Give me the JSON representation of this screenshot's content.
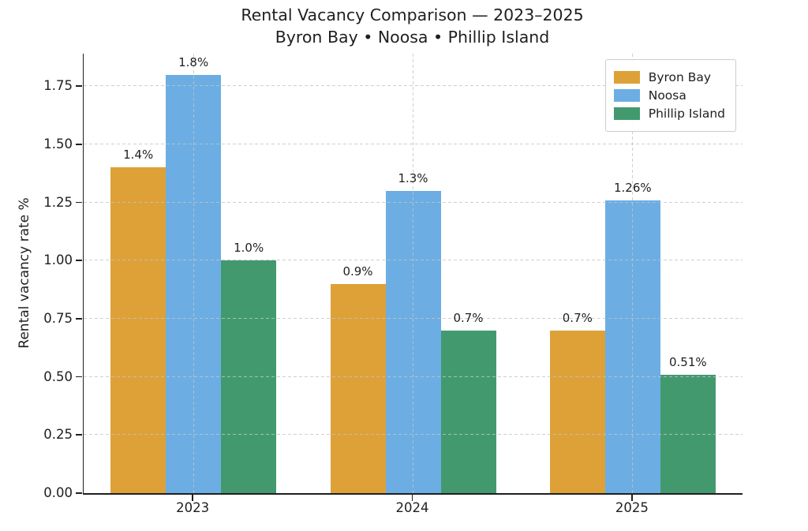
{
  "header": {
    "title": "Rental Vacancy Comparison — 2023–2025",
    "subtitle": "Byron Bay • Noosa • Phillip Island"
  },
  "chart_data": {
    "type": "bar",
    "categories": [
      "2023",
      "2024",
      "2025"
    ],
    "series": [
      {
        "name": "Byron Bay",
        "color": "#DDA138",
        "values": [
          1.4,
          0.9,
          0.7
        ],
        "value_labels": [
          "1.4%",
          "0.9%",
          "0.7%"
        ]
      },
      {
        "name": "Noosa",
        "color": "#6CAEE3",
        "values": [
          1.8,
          1.3,
          1.26
        ],
        "value_labels": [
          "1.8%",
          "1.3%",
          "1.26%"
        ]
      },
      {
        "name": "Phillip Island",
        "color": "#43996E",
        "values": [
          1.0,
          0.7,
          0.51
        ],
        "value_labels": [
          "1.0%",
          "0.7%",
          "0.51%"
        ]
      }
    ],
    "xlabel": "",
    "ylabel": "Rental vacancy rate %",
    "ytick_labels": [
      "0.00",
      "0.25",
      "0.50",
      "0.75",
      "1.00",
      "1.25",
      "1.50",
      "1.75"
    ],
    "ytick_values": [
      0,
      0.25,
      0.5,
      0.75,
      1.0,
      1.25,
      1.5,
      1.75
    ],
    "ylim": [
      0,
      1.89
    ],
    "grid": "dashed horizontal and vertical gridlines, drawn above bars",
    "legend_position": "upper right",
    "bar_width_fraction": 0.25
  },
  "style_colors": {
    "text": "#1f1f1f",
    "gridline": "#c3c3c3",
    "spine": "#1f1f1f",
    "legend_border": "#cccccc",
    "background": "#ffffff"
  }
}
